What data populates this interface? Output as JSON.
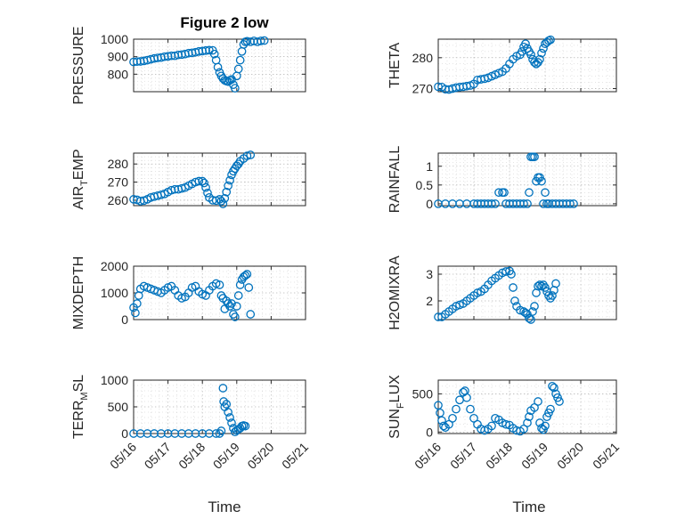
{
  "figure": {
    "title": "Figure 2 low"
  },
  "chart_data": [
    {
      "id": "pressure",
      "type": "scatter",
      "ylabel": "PRESSURE",
      "ylim": [
        700,
        1000
      ],
      "yticks": [
        800,
        900,
        1000
      ],
      "xlim": [
        0,
        5
      ],
      "points": [
        [
          0.0,
          870
        ],
        [
          0.1,
          872
        ],
        [
          0.2,
          873
        ],
        [
          0.3,
          876
        ],
        [
          0.4,
          880
        ],
        [
          0.5,
          885
        ],
        [
          0.6,
          890
        ],
        [
          0.7,
          893
        ],
        [
          0.8,
          895
        ],
        [
          0.9,
          900
        ],
        [
          1.0,
          902
        ],
        [
          1.1,
          905
        ],
        [
          1.2,
          905
        ],
        [
          1.3,
          910
        ],
        [
          1.4,
          912
        ],
        [
          1.5,
          915
        ],
        [
          1.6,
          920
        ],
        [
          1.7,
          922
        ],
        [
          1.8,
          925
        ],
        [
          1.9,
          930
        ],
        [
          2.0,
          932
        ],
        [
          2.1,
          935
        ],
        [
          2.2,
          937
        ],
        [
          2.3,
          936
        ],
        [
          2.35,
          915
        ],
        [
          2.4,
          880
        ],
        [
          2.45,
          840
        ],
        [
          2.5,
          810
        ],
        [
          2.55,
          790
        ],
        [
          2.6,
          775
        ],
        [
          2.65,
          765
        ],
        [
          2.7,
          760
        ],
        [
          2.75,
          758
        ],
        [
          2.8,
          765
        ],
        [
          2.85,
          770
        ],
        [
          2.9,
          740
        ],
        [
          2.95,
          720
        ],
        [
          3.0,
          790
        ],
        [
          3.05,
          830
        ],
        [
          3.1,
          880
        ],
        [
          3.15,
          930
        ],
        [
          3.2,
          970
        ],
        [
          3.25,
          985
        ],
        [
          3.3,
          988
        ],
        [
          3.4,
          985
        ],
        [
          3.5,
          990
        ],
        [
          3.6,
          985
        ],
        [
          3.7,
          990
        ],
        [
          3.8,
          992
        ]
      ]
    },
    {
      "id": "theta",
      "type": "scatter",
      "ylabel": "THETA",
      "ylim": [
        269,
        286
      ],
      "yticks": [
        270,
        280
      ],
      "xlim": [
        0,
        5
      ],
      "points": [
        [
          0.0,
          270.6
        ],
        [
          0.1,
          270.5
        ],
        [
          0.2,
          269.8
        ],
        [
          0.3,
          269.7
        ],
        [
          0.4,
          270.0
        ],
        [
          0.5,
          270.3
        ],
        [
          0.6,
          270.5
        ],
        [
          0.7,
          270.6
        ],
        [
          0.8,
          270.8
        ],
        [
          0.9,
          271.0
        ],
        [
          1.0,
          271.5
        ],
        [
          1.1,
          272.8
        ],
        [
          1.2,
          273.0
        ],
        [
          1.3,
          273.2
        ],
        [
          1.4,
          273.5
        ],
        [
          1.5,
          274.0
        ],
        [
          1.6,
          274.5
        ],
        [
          1.7,
          275.0
        ],
        [
          1.8,
          275.5
        ],
        [
          1.9,
          276.5
        ],
        [
          2.0,
          278.0
        ],
        [
          2.1,
          279.5
        ],
        [
          2.2,
          280.5
        ],
        [
          2.3,
          281.0
        ],
        [
          2.35,
          282.0
        ],
        [
          2.4,
          283.5
        ],
        [
          2.45,
          284.5
        ],
        [
          2.5,
          283.0
        ],
        [
          2.55,
          282.0
        ],
        [
          2.6,
          281.0
        ],
        [
          2.65,
          279.5
        ],
        [
          2.7,
          278.5
        ],
        [
          2.75,
          278.0
        ],
        [
          2.8,
          278.5
        ],
        [
          2.85,
          279.5
        ],
        [
          2.9,
          281.5
        ],
        [
          2.95,
          283.0
        ],
        [
          3.0,
          284.5
        ],
        [
          3.05,
          285.0
        ],
        [
          3.1,
          285.5
        ],
        [
          3.15,
          285.8
        ]
      ]
    },
    {
      "id": "airtemp",
      "type": "scatter",
      "ylabel": "AIR",
      "ylabel_sub": "T",
      "ylabel_rest": "EMP",
      "ylim": [
        257,
        286
      ],
      "yticks": [
        260,
        270,
        280
      ],
      "xlim": [
        0,
        5
      ],
      "points": [
        [
          0.0,
          260.5
        ],
        [
          0.1,
          260.2
        ],
        [
          0.2,
          259.5
        ],
        [
          0.3,
          259.8
        ],
        [
          0.4,
          260.5
        ],
        [
          0.5,
          261.5
        ],
        [
          0.6,
          262.0
        ],
        [
          0.7,
          262.5
        ],
        [
          0.8,
          263.0
        ],
        [
          0.9,
          263.5
        ],
        [
          1.0,
          264.5
        ],
        [
          1.1,
          265.5
        ],
        [
          1.2,
          266.0
        ],
        [
          1.3,
          266.0
        ],
        [
          1.4,
          266.5
        ],
        [
          1.5,
          267.0
        ],
        [
          1.6,
          268.0
        ],
        [
          1.7,
          269.0
        ],
        [
          1.8,
          270.0
        ],
        [
          1.9,
          270.5
        ],
        [
          2.0,
          270.5
        ],
        [
          2.05,
          269.5
        ],
        [
          2.1,
          267.0
        ],
        [
          2.15,
          264.0
        ],
        [
          2.2,
          261.5
        ],
        [
          2.3,
          260.0
        ],
        [
          2.4,
          259.8
        ],
        [
          2.5,
          260.5
        ],
        [
          2.55,
          259.5
        ],
        [
          2.6,
          258.0
        ],
        [
          2.65,
          261.0
        ],
        [
          2.7,
          264.5
        ],
        [
          2.75,
          268.0
        ],
        [
          2.8,
          271.0
        ],
        [
          2.85,
          274.0
        ],
        [
          2.9,
          276.0
        ],
        [
          2.95,
          277.5
        ],
        [
          3.0,
          279.0
        ],
        [
          3.05,
          280.0
        ],
        [
          3.1,
          281.5
        ],
        [
          3.2,
          283.0
        ],
        [
          3.3,
          284.5
        ],
        [
          3.4,
          285.0
        ]
      ]
    },
    {
      "id": "rainfall",
      "type": "scatter",
      "ylabel": "RAINFALL",
      "ylim": [
        -0.05,
        1.35
      ],
      "yticks": [
        0,
        0.5,
        1
      ],
      "xlim": [
        0,
        5
      ],
      "points": [
        [
          0.0,
          0
        ],
        [
          0.2,
          0
        ],
        [
          0.4,
          0
        ],
        [
          0.6,
          0
        ],
        [
          0.8,
          0
        ],
        [
          1.0,
          0
        ],
        [
          1.1,
          0
        ],
        [
          1.2,
          0
        ],
        [
          1.3,
          0
        ],
        [
          1.4,
          0
        ],
        [
          1.5,
          0
        ],
        [
          1.6,
          0
        ],
        [
          1.7,
          0.3
        ],
        [
          1.8,
          0.3
        ],
        [
          1.85,
          0.3
        ],
        [
          1.9,
          0
        ],
        [
          2.0,
          0
        ],
        [
          2.1,
          0
        ],
        [
          2.2,
          0
        ],
        [
          2.3,
          0
        ],
        [
          2.4,
          0
        ],
        [
          2.5,
          0
        ],
        [
          2.55,
          0.3
        ],
        [
          2.6,
          1.25
        ],
        [
          2.65,
          1.25
        ],
        [
          2.7,
          1.25
        ],
        [
          2.75,
          0.6
        ],
        [
          2.8,
          0.7
        ],
        [
          2.85,
          0.7
        ],
        [
          2.9,
          0.6
        ],
        [
          2.95,
          0
        ],
        [
          3.0,
          0.3
        ],
        [
          3.05,
          0
        ],
        [
          3.1,
          0
        ],
        [
          3.2,
          0
        ],
        [
          3.3,
          0
        ],
        [
          3.4,
          0
        ],
        [
          3.5,
          0
        ],
        [
          3.6,
          0
        ],
        [
          3.7,
          0
        ],
        [
          3.8,
          0
        ]
      ]
    },
    {
      "id": "mixdepth",
      "type": "scatter",
      "ylabel": "MIXDEPTH",
      "ylim": [
        0,
        2000
      ],
      "yticks": [
        0,
        1000,
        2000
      ],
      "xlim": [
        0,
        5
      ],
      "points": [
        [
          0.0,
          450
        ],
        [
          0.05,
          250
        ],
        [
          0.1,
          600
        ],
        [
          0.15,
          900
        ],
        [
          0.2,
          1150
        ],
        [
          0.3,
          1250
        ],
        [
          0.4,
          1200
        ],
        [
          0.5,
          1150
        ],
        [
          0.6,
          1100
        ],
        [
          0.7,
          1050
        ],
        [
          0.8,
          1000
        ],
        [
          0.9,
          1100
        ],
        [
          1.0,
          1200
        ],
        [
          1.1,
          1250
        ],
        [
          1.2,
          1100
        ],
        [
          1.3,
          900
        ],
        [
          1.4,
          800
        ],
        [
          1.5,
          850
        ],
        [
          1.6,
          1000
        ],
        [
          1.7,
          1200
        ],
        [
          1.8,
          1250
        ],
        [
          1.9,
          1050
        ],
        [
          2.0,
          950
        ],
        [
          2.1,
          900
        ],
        [
          2.2,
          1100
        ],
        [
          2.3,
          1250
        ],
        [
          2.4,
          1350
        ],
        [
          2.5,
          1300
        ],
        [
          2.55,
          900
        ],
        [
          2.6,
          800
        ],
        [
          2.65,
          400
        ],
        [
          2.7,
          700
        ],
        [
          2.75,
          600
        ],
        [
          2.8,
          500
        ],
        [
          2.85,
          600
        ],
        [
          2.9,
          200
        ],
        [
          2.95,
          100
        ],
        [
          3.0,
          500
        ],
        [
          3.05,
          900
        ],
        [
          3.1,
          1300
        ],
        [
          3.15,
          1500
        ],
        [
          3.2,
          1600
        ],
        [
          3.25,
          1650
        ],
        [
          3.3,
          1700
        ],
        [
          3.35,
          1200
        ],
        [
          3.4,
          200
        ]
      ]
    },
    {
      "id": "h2omixra",
      "type": "scatter",
      "ylabel": "H2OMIXRA",
      "ylim": [
        1.3,
        3.3
      ],
      "yticks": [
        2,
        3
      ],
      "xlim": [
        0,
        5
      ],
      "points": [
        [
          0.0,
          1.4
        ],
        [
          0.1,
          1.4
        ],
        [
          0.2,
          1.5
        ],
        [
          0.3,
          1.6
        ],
        [
          0.4,
          1.7
        ],
        [
          0.5,
          1.8
        ],
        [
          0.6,
          1.85
        ],
        [
          0.7,
          1.9
        ],
        [
          0.8,
          2.0
        ],
        [
          0.9,
          2.1
        ],
        [
          1.0,
          2.2
        ],
        [
          1.1,
          2.3
        ],
        [
          1.2,
          2.35
        ],
        [
          1.3,
          2.45
        ],
        [
          1.4,
          2.6
        ],
        [
          1.5,
          2.75
        ],
        [
          1.6,
          2.85
        ],
        [
          1.7,
          2.95
        ],
        [
          1.8,
          3.05
        ],
        [
          1.9,
          3.1
        ],
        [
          2.0,
          3.12
        ],
        [
          2.05,
          3.0
        ],
        [
          2.1,
          2.5
        ],
        [
          2.15,
          2.0
        ],
        [
          2.2,
          1.8
        ],
        [
          2.3,
          1.65
        ],
        [
          2.4,
          1.6
        ],
        [
          2.45,
          1.55
        ],
        [
          2.5,
          1.5
        ],
        [
          2.55,
          1.35
        ],
        [
          2.6,
          1.3
        ],
        [
          2.65,
          1.6
        ],
        [
          2.7,
          1.8
        ],
        [
          2.75,
          2.3
        ],
        [
          2.8,
          2.55
        ],
        [
          2.85,
          2.6
        ],
        [
          2.9,
          2.55
        ],
        [
          2.95,
          2.6
        ],
        [
          3.0,
          2.5
        ],
        [
          3.05,
          2.35
        ],
        [
          3.1,
          2.2
        ],
        [
          3.15,
          2.1
        ],
        [
          3.2,
          2.2
        ],
        [
          3.25,
          2.4
        ],
        [
          3.3,
          2.65
        ]
      ]
    },
    {
      "id": "terrmsl",
      "type": "scatter",
      "ylabel": "TERR",
      "ylabel_sub": "M",
      "ylabel_rest": "SL",
      "ylim": [
        0,
        1000
      ],
      "yticks": [
        0,
        500,
        1000
      ],
      "xlim": [
        0,
        5
      ],
      "points": [
        [
          0.0,
          0
        ],
        [
          0.2,
          0
        ],
        [
          0.4,
          0
        ],
        [
          0.6,
          0
        ],
        [
          0.8,
          0
        ],
        [
          1.0,
          0
        ],
        [
          1.2,
          0
        ],
        [
          1.4,
          0
        ],
        [
          1.6,
          0
        ],
        [
          1.8,
          0
        ],
        [
          2.0,
          0
        ],
        [
          2.2,
          0
        ],
        [
          2.4,
          0
        ],
        [
          2.5,
          0
        ],
        [
          2.55,
          50
        ],
        [
          2.6,
          850
        ],
        [
          2.62,
          600
        ],
        [
          2.65,
          500
        ],
        [
          2.7,
          550
        ],
        [
          2.75,
          400
        ],
        [
          2.8,
          300
        ],
        [
          2.85,
          200
        ],
        [
          2.9,
          100
        ],
        [
          2.95,
          30
        ],
        [
          3.0,
          60
        ],
        [
          3.05,
          80
        ],
        [
          3.1,
          100
        ],
        [
          3.15,
          140
        ],
        [
          3.2,
          150
        ],
        [
          3.25,
          140
        ]
      ]
    },
    {
      "id": "sunflux",
      "type": "scatter",
      "ylabel": "SUN",
      "ylabel_sub": "F",
      "ylabel_rest": "LUX",
      "ylim": [
        -20,
        680
      ],
      "yticks": [
        0,
        500
      ],
      "xlim": [
        0,
        5
      ],
      "points": [
        [
          0.0,
          350
        ],
        [
          0.05,
          250
        ],
        [
          0.1,
          150
        ],
        [
          0.15,
          80
        ],
        [
          0.2,
          60
        ],
        [
          0.3,
          100
        ],
        [
          0.4,
          180
        ],
        [
          0.5,
          300
        ],
        [
          0.6,
          420
        ],
        [
          0.7,
          520
        ],
        [
          0.75,
          540
        ],
        [
          0.8,
          450
        ],
        [
          0.9,
          300
        ],
        [
          1.0,
          180
        ],
        [
          1.1,
          100
        ],
        [
          1.2,
          40
        ],
        [
          1.3,
          20
        ],
        [
          1.4,
          40
        ],
        [
          1.5,
          80
        ],
        [
          1.6,
          180
        ],
        [
          1.7,
          160
        ],
        [
          1.8,
          120
        ],
        [
          1.9,
          100
        ],
        [
          2.0,
          90
        ],
        [
          2.1,
          50
        ],
        [
          2.2,
          20
        ],
        [
          2.3,
          10
        ],
        [
          2.4,
          40
        ],
        [
          2.5,
          120
        ],
        [
          2.55,
          200
        ],
        [
          2.6,
          280
        ],
        [
          2.7,
          320
        ],
        [
          2.8,
          400
        ],
        [
          2.85,
          120
        ],
        [
          2.9,
          50
        ],
        [
          2.95,
          30
        ],
        [
          3.0,
          80
        ],
        [
          3.05,
          200
        ],
        [
          3.1,
          250
        ],
        [
          3.15,
          300
        ],
        [
          3.2,
          600
        ],
        [
          3.25,
          580
        ],
        [
          3.3,
          500
        ],
        [
          3.35,
          450
        ],
        [
          3.4,
          400
        ]
      ]
    }
  ],
  "xticklabels": [
    "05/16",
    "05/17",
    "05/18",
    "05/19",
    "05/20",
    "05/21"
  ],
  "xlabel": "Time"
}
